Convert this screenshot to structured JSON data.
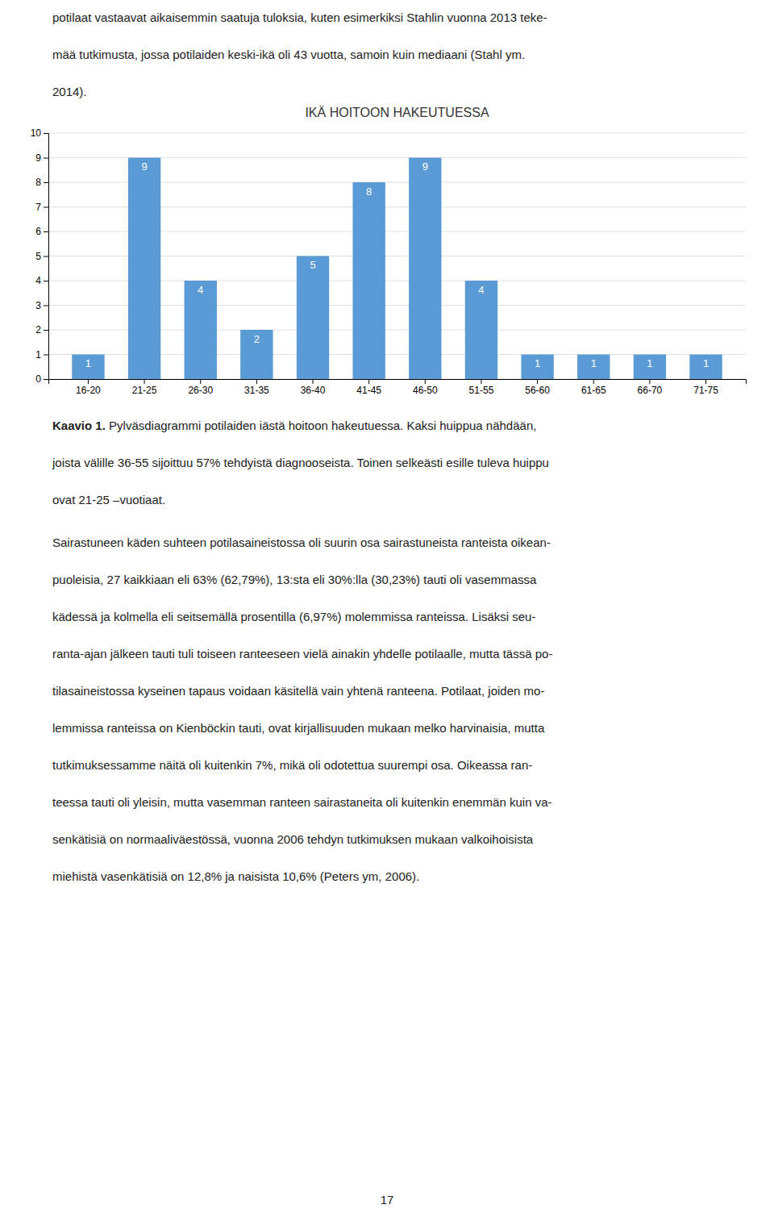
{
  "chart_data": {
    "type": "bar",
    "title": "IKÄ HOITOON HAKEUTUESSA",
    "categories": [
      "16-20",
      "21-25",
      "26-30",
      "31-35",
      "36-40",
      "41-45",
      "46-50",
      "51-55",
      "56-60",
      "61-65",
      "66-70",
      "71-75"
    ],
    "values": [
      1,
      9,
      4,
      2,
      5,
      8,
      9,
      4,
      1,
      1,
      1,
      1
    ],
    "color": "#5B9BD5",
    "ylim": [
      0,
      10
    ],
    "yticks": [
      0,
      1,
      2,
      3,
      4,
      5,
      6,
      7,
      8,
      9,
      10
    ],
    "grid": true,
    "data_labels": true
  },
  "text_before": [
    "potilaat vastaavat aikaisemmin saatuja tuloksia, kuten esimerkiksi Stahlin vuonna 2013 teke-",
    "mää tutkimusta, jossa potilaiden keski-ikä oli 43 vuotta, samoin kuin mediaani (Stahl ym.",
    "2014)."
  ],
  "caption": {
    "label": "Kaavio 1.",
    "text": [
      " Pylväsdiagrammi potilaiden iästä hoitoon hakeutuessa. Kaksi huippua nähdään,",
      "joista välille 36-55 sijoittuu 57% tehdyistä diagnooseista. Toinen selkeästi esille tuleva huippu",
      "ovat 21-25 –vuotiaat."
    ]
  },
  "text_after": [
    "Sairastuneen käden suhteen potilasaineistossa oli suurin osa sairastuneista ranteista oikean-",
    "puoleisia, 27 kaikkiaan eli 63% (62,79%), 13:sta eli 30%:lla (30,23%) tauti oli vasemmassa",
    "kädessä ja kolmella eli seitsemällä prosentilla (6,97%) molemmissa ranteissa. Lisäksi seu-",
    "ranta-ajan jälkeen tauti tuli toiseen ranteeseen vielä ainakin yhdelle potilaalle, mutta tässä po-",
    "tilasaineistossa kyseinen tapaus voidaan käsitellä vain yhtenä ranteena. Potilaat, joiden mo-",
    "lemmissa ranteissa on Kienböckin tauti, ovat kirjallisuuden mukaan melko harvinaisia, mutta",
    "tutkimuksessamme näitä oli kuitenkin 7%, mikä oli odotettua suurempi osa. Oikeassa ran-",
    "teessa tauti oli yleisin, mutta vasemman ranteen sairastaneita oli kuitenkin enemmän kuin va-",
    "senkätisiä on normaaliväestössä, vuonna 2006 tehdyn tutkimuksen mukaan valkoihoisista",
    "miehistä vasenkätisiä on 12,8% ja naisista 10,6% (Peters ym, 2006)."
  ],
  "page_number": "17"
}
